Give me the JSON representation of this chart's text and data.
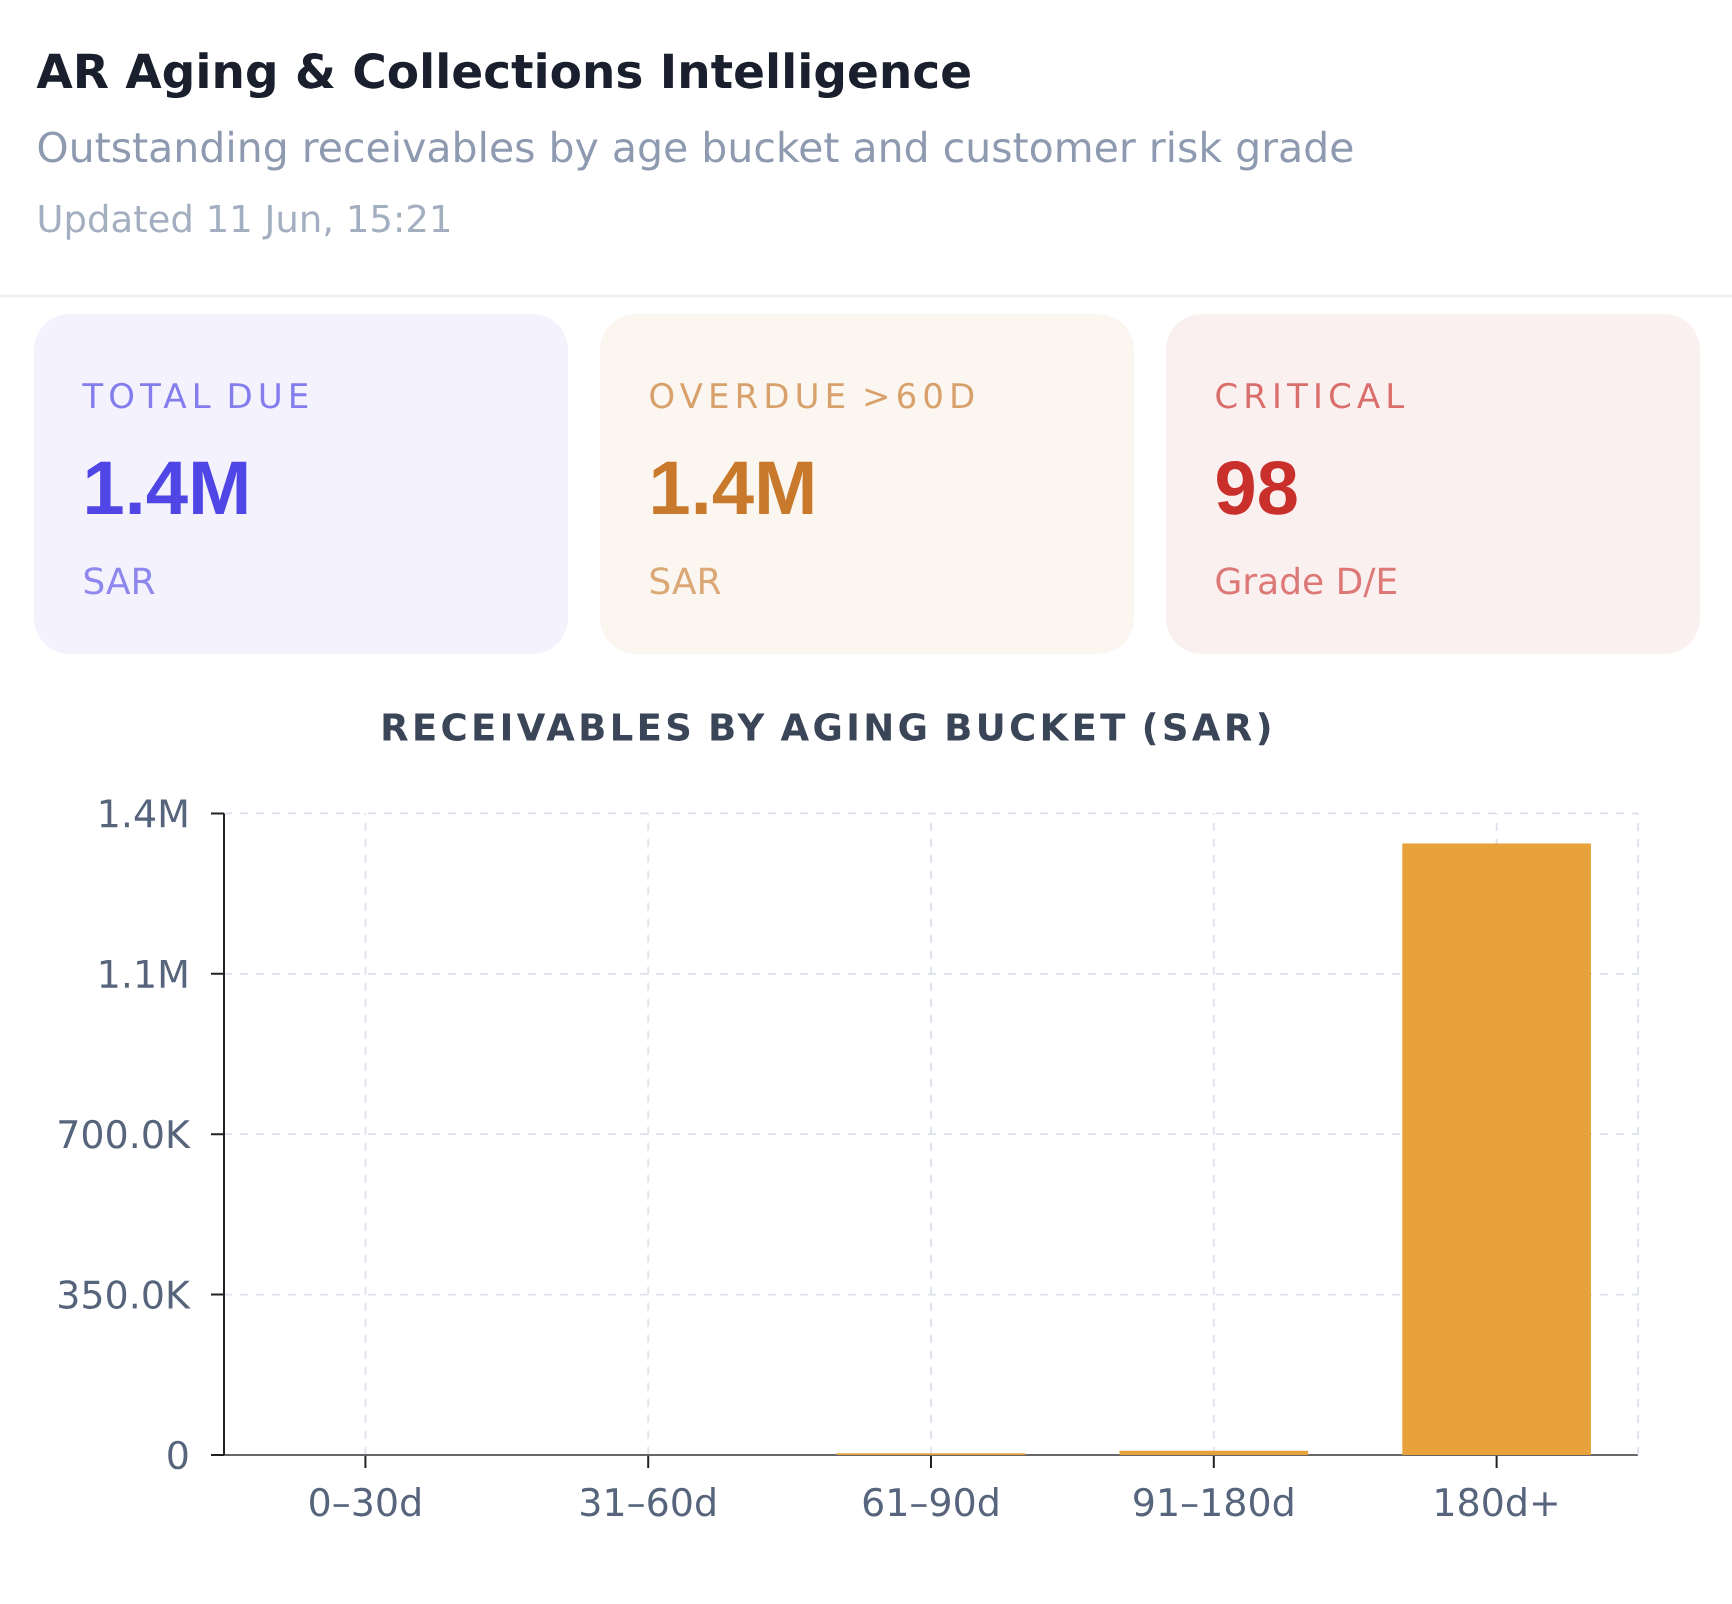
{
  "chart_data": [
    {
      "type": "other",
      "title": "AR Aging & Collections Intelligence",
      "subtitle": "Outstanding receivables by age bucket and customer risk grade",
      "annotations": [
        "Updated 11 Jun, 15:21"
      ]
    },
    {
      "type": "other",
      "title": "TOTAL DUE",
      "annotations": [
        "1.4M",
        "SAR"
      ],
      "color": "#4f46e5"
    },
    {
      "type": "other",
      "title": "OVERDUE >60D",
      "annotations": [
        "1.4M",
        "SAR"
      ],
      "color": "#c8792b"
    },
    {
      "type": "other",
      "title": "CRITICAL",
      "annotations": [
        "98",
        "Grade D/E"
      ],
      "color": "#c9302c"
    },
    {
      "type": "bar",
      "title": "RECEIVABLES BY AGING BUCKET (SAR)",
      "categories": [
        "0–30d",
        "31–60d",
        "61–90d",
        "91–180d",
        "180d+"
      ],
      "values": [
        0,
        0,
        4000,
        9000,
        1335000
      ],
      "color": "#e8a23b",
      "ylim": [
        0,
        1400000
      ],
      "yticks": [
        0,
        {
          "value": 350000,
          "label": "350.0K"
        },
        {
          "value": 700000,
          "label": "700.0K"
        },
        {
          "value": 1050000,
          "label": "1.1M"
        },
        {
          "value": 1400000,
          "label": "1.4M"
        }
      ],
      "grid": true
    }
  ]
}
